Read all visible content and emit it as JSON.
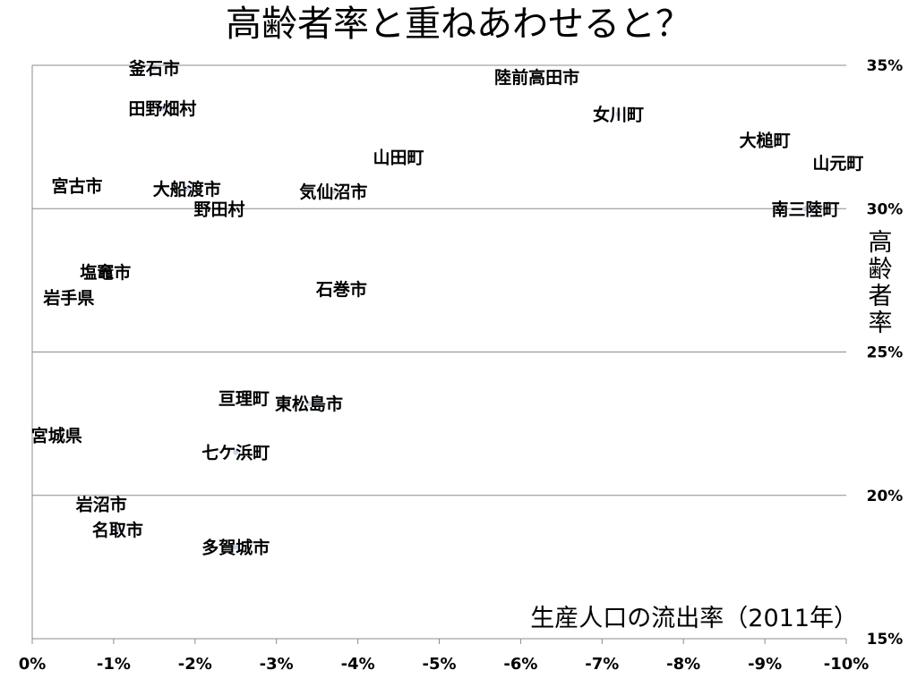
{
  "title": "高齢者率と重ねあわせると？",
  "chart_data": {
    "type": "scatter",
    "title": "高齢者率と重ねあわせると？",
    "xlabel": "生産人口の流出率（2011年）",
    "ylabel": "高齢者率",
    "x_unit": "%",
    "y_unit": "%",
    "xlim": [
      0,
      -10
    ],
    "ylim": [
      15,
      35
    ],
    "x_ticks": [
      0,
      -1,
      -2,
      -3,
      -4,
      -5,
      -6,
      -7,
      -8,
      -9,
      -10
    ],
    "x_tick_labels": [
      "0%",
      "-1%",
      "-2%",
      "-3%",
      "-4%",
      "-5%",
      "-6%",
      "-7%",
      "-8%",
      "-9%",
      "-10%"
    ],
    "y_ticks": [
      15,
      20,
      25,
      30,
      35
    ],
    "y_tick_labels": [
      "15%",
      "20%",
      "25%",
      "30%",
      "35%"
    ],
    "y_axis_position": "right",
    "grid": "horizontal",
    "legend": "none",
    "marker_color": "#c8d4e8",
    "points": [
      {
        "label": "釜石市",
        "x": -1.5,
        "y": 34.9
      },
      {
        "label": "陸前高田市",
        "x": -6.2,
        "y": 34.6
      },
      {
        "label": "田野畑村",
        "x": -1.6,
        "y": 33.5
      },
      {
        "label": "女川町",
        "x": -7.2,
        "y": 33.3
      },
      {
        "label": "大槌町",
        "x": -9.0,
        "y": 32.4
      },
      {
        "label": "山田町",
        "x": -4.5,
        "y": 31.8
      },
      {
        "label": "山元町",
        "x": -9.9,
        "y": 31.6
      },
      {
        "label": "宮古市",
        "x": -0.55,
        "y": 30.8
      },
      {
        "label": "大船渡市",
        "x": -1.9,
        "y": 30.7
      },
      {
        "label": "気仙沼市",
        "x": -3.7,
        "y": 30.6
      },
      {
        "label": "野田村",
        "x": -2.3,
        "y": 30.0
      },
      {
        "label": "南三陸町",
        "x": -9.5,
        "y": 30.0
      },
      {
        "label": "塩竈市",
        "x": -0.9,
        "y": 27.8
      },
      {
        "label": "石巻市",
        "x": -3.8,
        "y": 27.2
      },
      {
        "label": "岩手県",
        "x": -0.45,
        "y": 26.9
      },
      {
        "label": "亘理町",
        "x": -2.6,
        "y": 23.4
      },
      {
        "label": "東松島市",
        "x": -3.4,
        "y": 23.2
      },
      {
        "label": "宮城県",
        "x": -0.3,
        "y": 22.1
      },
      {
        "label": "七ケ浜町",
        "x": -2.5,
        "y": 21.5
      },
      {
        "label": "岩沼市",
        "x": -0.85,
        "y": 19.7
      },
      {
        "label": "名取市",
        "x": -1.05,
        "y": 18.8
      },
      {
        "label": "多賀城市",
        "x": -2.5,
        "y": 18.2
      }
    ]
  }
}
